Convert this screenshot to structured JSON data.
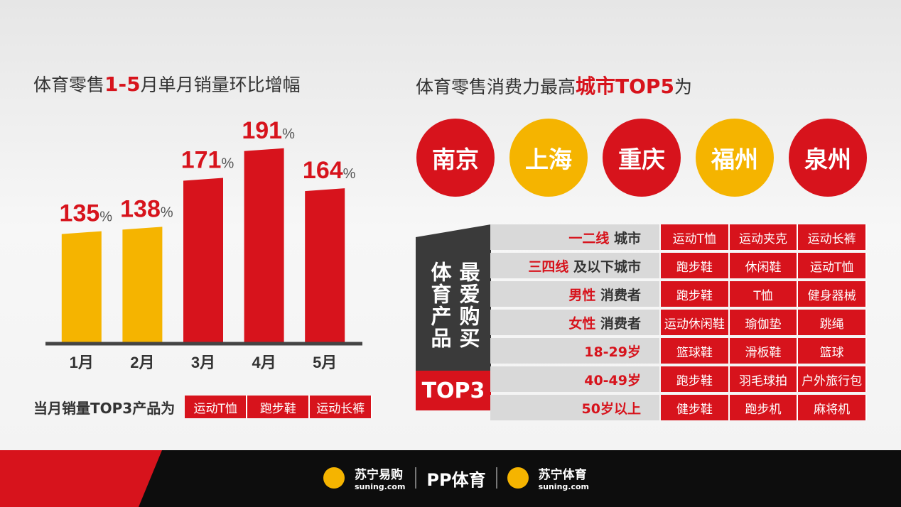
{
  "chart_data": {
    "type": "bar",
    "categories": [
      "1月",
      "2月",
      "3月",
      "4月",
      "5月"
    ],
    "values": [
      135,
      138,
      171,
      191,
      164
    ],
    "value_labels": [
      "135%",
      "138%",
      "171%",
      "191%",
      "164%"
    ],
    "colors": [
      "#f5b400",
      "#f5b400",
      "#d7131c",
      "#d7131c",
      "#d7131c"
    ],
    "ylim": [
      60,
      200
    ]
  },
  "left": {
    "title": [
      "体育零售",
      "1-5",
      "月单月销量环比增幅"
    ],
    "top3_label": "当月销量TOP3产品为",
    "top3": [
      "运动T恤",
      "跑步鞋",
      "运动长裤"
    ]
  },
  "right": {
    "title": [
      "体育零售消费力最高",
      "城市TOP5",
      "为"
    ],
    "cities": [
      {
        "name": "南京",
        "color": "#d7131c"
      },
      {
        "name": "上海",
        "color": "#f5b400"
      },
      {
        "name": "重庆",
        "color": "#d7131c"
      },
      {
        "name": "福州",
        "color": "#f5b400"
      },
      {
        "name": "泉州",
        "color": "#d7131c"
      }
    ],
    "panel_text": [
      "体育产品",
      "最爱购买"
    ],
    "panel_badge": "TOP3",
    "rows": [
      {
        "highlight": "一二线",
        "label": "城市",
        "items": [
          "运动T恤",
          "运动夹克",
          "运动长裤"
        ]
      },
      {
        "highlight": "三四线",
        "label": "及以下城市",
        "items": [
          "跑步鞋",
          "休闲鞋",
          "运动T恤"
        ]
      },
      {
        "highlight": "男性",
        "label": "消费者",
        "items": [
          "跑步鞋",
          "T恤",
          "健身器械"
        ]
      },
      {
        "highlight": "女性",
        "label": "消费者",
        "items": [
          "运动休闲鞋",
          "瑜伽垫",
          "跳绳"
        ]
      },
      {
        "highlight": "18-29岁",
        "label": null,
        "items": [
          "篮球鞋",
          "滑板鞋",
          "篮球"
        ]
      },
      {
        "highlight": "40-49岁",
        "label": null,
        "items": [
          "跑步鞋",
          "羽毛球拍",
          "户外旅行包"
        ]
      },
      {
        "highlight": "50岁以上",
        "label": null,
        "items": [
          "健步鞋",
          "跑步机",
          "麻将机"
        ]
      }
    ]
  },
  "footer": [
    {
      "name": "苏宁易购",
      "url": "suning.com"
    },
    {
      "name": "PP体育"
    },
    {
      "name": "苏宁体育",
      "url": "suning.com"
    }
  ]
}
